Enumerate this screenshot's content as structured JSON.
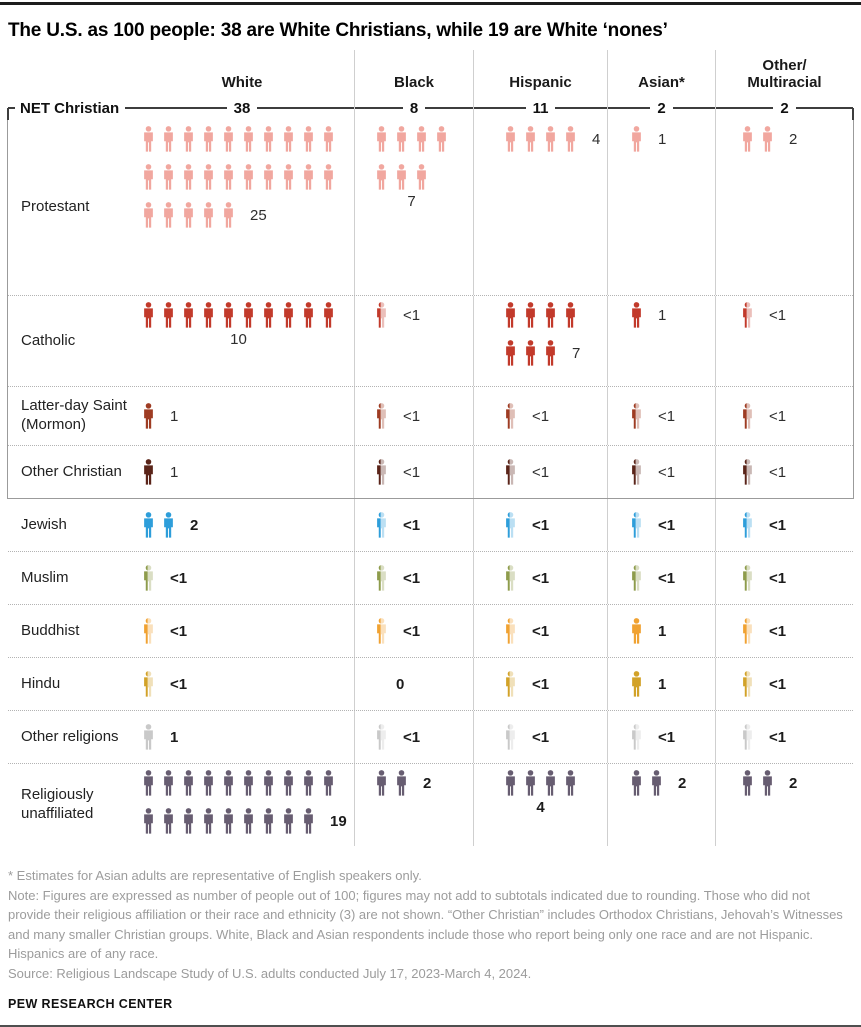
{
  "title": "The U.S. as 100 people: 38 are White Christians, while 19 are White ‘nones’",
  "columns": [
    "White",
    "Black",
    "Hispanic",
    "Asian*",
    "Other/\nMultiracial"
  ],
  "net": {
    "label": "NET Christian",
    "values": [
      "38",
      "8",
      "11",
      "2",
      "2"
    ]
  },
  "colors": {
    "protestant": "#F1A79F",
    "catholic": "#C23A2B",
    "latter_day_saint": "#9E3C23",
    "other_christian": "#5A2419",
    "jewish": "#2E9EDA",
    "muslim": "#8E9C4C",
    "buddhist": "#F0A232",
    "hindu": "#D2A228",
    "other_religions": "#C9C9C9",
    "unaffiliated": "#675D71"
  },
  "rows": [
    {
      "id": "protestant",
      "label": "Protestant",
      "color_key": "protestant",
      "bold": false,
      "in_box": true,
      "size": "tall",
      "top": true,
      "cells": [
        {
          "type": "grid",
          "icon_rows": [
            10,
            10,
            5
          ],
          "count": "25",
          "count_pos": "inline"
        },
        {
          "type": "grid",
          "icon_rows": [
            4,
            3
          ],
          "count": "7",
          "count_pos": "below"
        },
        {
          "type": "grid",
          "icon_rows": [
            4
          ],
          "count": "4",
          "count_pos": "inline"
        },
        {
          "type": "grid",
          "icon_rows": [
            1
          ],
          "count": "1",
          "count_pos": "inline"
        },
        {
          "type": "grid",
          "icon_rows": [
            2
          ],
          "count": "2",
          "count_pos": "inline"
        }
      ]
    },
    {
      "id": "catholic",
      "label": "Catholic",
      "color_key": "catholic",
      "bold": false,
      "in_box": true,
      "size": "med",
      "top": true,
      "cells": [
        {
          "type": "grid",
          "icon_rows": [
            10
          ],
          "count": "10",
          "count_pos": "below"
        },
        {
          "type": "partial",
          "count": "<1"
        },
        {
          "type": "grid",
          "icon_rows": [
            4,
            3
          ],
          "count": "7",
          "count_pos": "inline"
        },
        {
          "type": "grid",
          "icon_rows": [
            1
          ],
          "count": "1",
          "count_pos": "inline"
        },
        {
          "type": "partial",
          "count": "<1"
        }
      ]
    },
    {
      "id": "latter-day-saint",
      "label": "Latter-day Saint\n(Mormon)",
      "color_key": "latter_day_saint",
      "bold": false,
      "in_box": true,
      "size": "sm2",
      "top": false,
      "cells": [
        {
          "type": "grid",
          "icon_rows": [
            1
          ],
          "count": "1",
          "count_pos": "inline"
        },
        {
          "type": "partial",
          "count": "<1"
        },
        {
          "type": "partial",
          "count": "<1"
        },
        {
          "type": "partial",
          "count": "<1"
        },
        {
          "type": "partial",
          "count": "<1"
        }
      ]
    },
    {
      "id": "other-christian",
      "label": "Other Christian",
      "color_key": "other_christian",
      "bold": false,
      "in_box": true,
      "size": "sm",
      "top": false,
      "cells": [
        {
          "type": "grid",
          "icon_rows": [
            1
          ],
          "count": "1",
          "count_pos": "inline"
        },
        {
          "type": "partial",
          "count": "<1"
        },
        {
          "type": "partial",
          "count": "<1"
        },
        {
          "type": "partial",
          "count": "<1"
        },
        {
          "type": "partial",
          "count": "<1"
        }
      ]
    },
    {
      "id": "jewish",
      "label": "Jewish",
      "color_key": "jewish",
      "bold": true,
      "in_box": false,
      "size": "sm",
      "top": false,
      "cells": [
        {
          "type": "grid",
          "icon_rows": [
            2
          ],
          "count": "2",
          "count_pos": "inline"
        },
        {
          "type": "partial",
          "count": "<1"
        },
        {
          "type": "partial",
          "count": "<1"
        },
        {
          "type": "partial",
          "count": "<1"
        },
        {
          "type": "partial",
          "count": "<1"
        }
      ]
    },
    {
      "id": "muslim",
      "label": "Muslim",
      "color_key": "muslim",
      "bold": true,
      "in_box": false,
      "size": "sm",
      "top": false,
      "cells": [
        {
          "type": "partial",
          "count": "<1"
        },
        {
          "type": "partial",
          "count": "<1"
        },
        {
          "type": "partial",
          "count": "<1"
        },
        {
          "type": "partial",
          "count": "<1"
        },
        {
          "type": "partial",
          "count": "<1"
        }
      ]
    },
    {
      "id": "buddhist",
      "label": "Buddhist",
      "color_key": "buddhist",
      "bold": true,
      "in_box": false,
      "size": "sm",
      "top": false,
      "cells": [
        {
          "type": "partial",
          "count": "<1"
        },
        {
          "type": "partial",
          "count": "<1"
        },
        {
          "type": "partial",
          "count": "<1"
        },
        {
          "type": "grid",
          "icon_rows": [
            1
          ],
          "count": "1",
          "count_pos": "inline"
        },
        {
          "type": "partial",
          "count": "<1"
        }
      ]
    },
    {
      "id": "hindu",
      "label": "Hindu",
      "color_key": "hindu",
      "bold": true,
      "in_box": false,
      "size": "sm",
      "top": false,
      "cells": [
        {
          "type": "partial",
          "count": "<1"
        },
        {
          "type": "zero",
          "count": "0"
        },
        {
          "type": "partial",
          "count": "<1"
        },
        {
          "type": "grid",
          "icon_rows": [
            1
          ],
          "count": "1",
          "count_pos": "inline"
        },
        {
          "type": "partial",
          "count": "<1"
        }
      ]
    },
    {
      "id": "other-religions",
      "label": "Other religions",
      "color_key": "other_religions",
      "bold": true,
      "in_box": false,
      "size": "sm",
      "top": false,
      "cells": [
        {
          "type": "grid",
          "icon_rows": [
            1
          ],
          "count": "1",
          "count_pos": "inline"
        },
        {
          "type": "partial",
          "count": "<1"
        },
        {
          "type": "partial",
          "count": "<1"
        },
        {
          "type": "partial",
          "count": "<1"
        },
        {
          "type": "partial",
          "count": "<1"
        }
      ]
    },
    {
      "id": "religiously-unaffiliated",
      "label": "Religiously unaffiliated",
      "color_key": "unaffiliated",
      "bold": true,
      "in_box": false,
      "size": "unaff",
      "top": true,
      "cells": [
        {
          "type": "grid",
          "icon_rows": [
            10,
            9
          ],
          "count": "19",
          "count_pos": "inline"
        },
        {
          "type": "grid",
          "icon_rows": [
            2
          ],
          "count": "2",
          "count_pos": "inline"
        },
        {
          "type": "grid",
          "icon_rows": [
            4
          ],
          "count": "4",
          "count_pos": "below"
        },
        {
          "type": "grid",
          "icon_rows": [
            2
          ],
          "count": "2",
          "count_pos": "inline"
        },
        {
          "type": "grid",
          "icon_rows": [
            2
          ],
          "count": "2",
          "count_pos": "inline"
        }
      ]
    }
  ],
  "footnotes": {
    "asterisk": "* Estimates for Asian adults are representative of English speakers only.",
    "note": "Note: Figures are expressed as number of people out of 100; figures may not add to subtotals indicated due to rounding. Those who did not provide their religious affiliation or their race and ethnicity (3) are not shown. “Other Christian” includes Orthodox Christians, Jehovah’s Witnesses and many smaller Christian groups. White, Black and Asian respondents include those who report being only one race and are not Hispanic. Hispanics are of any race.",
    "source": "Source: Religious Landscape Study of U.S. adults conducted July 17, 2023-March 4, 2024."
  },
  "brand": "PEW RESEARCH CENTER",
  "chart_data": {
    "type": "table",
    "title": "The U.S. as 100 people: 38 are White Christians, while 19 are White ‘nones’",
    "columns": [
      "White",
      "Black",
      "Hispanic",
      "Asian*",
      "Other/Multiracial"
    ],
    "net_christian": [
      38,
      8,
      11,
      2,
      2
    ],
    "rows": [
      {
        "name": "Protestant",
        "values": [
          25,
          7,
          4,
          1,
          2
        ]
      },
      {
        "name": "Catholic",
        "values": [
          10,
          "<1",
          7,
          1,
          "<1"
        ]
      },
      {
        "name": "Latter-day Saint (Mormon)",
        "values": [
          1,
          "<1",
          "<1",
          "<1",
          "<1"
        ]
      },
      {
        "name": "Other Christian",
        "values": [
          1,
          "<1",
          "<1",
          "<1",
          "<1"
        ]
      },
      {
        "name": "Jewish",
        "values": [
          2,
          "<1",
          "<1",
          "<1",
          "<1"
        ]
      },
      {
        "name": "Muslim",
        "values": [
          "<1",
          "<1",
          "<1",
          "<1",
          "<1"
        ]
      },
      {
        "name": "Buddhist",
        "values": [
          "<1",
          "<1",
          "<1",
          1,
          "<1"
        ]
      },
      {
        "name": "Hindu",
        "values": [
          "<1",
          0,
          "<1",
          1,
          "<1"
        ]
      },
      {
        "name": "Other religions",
        "values": [
          1,
          "<1",
          "<1",
          "<1",
          "<1"
        ]
      },
      {
        "name": "Religiously unaffiliated",
        "values": [
          19,
          2,
          4,
          2,
          2
        ]
      }
    ]
  }
}
